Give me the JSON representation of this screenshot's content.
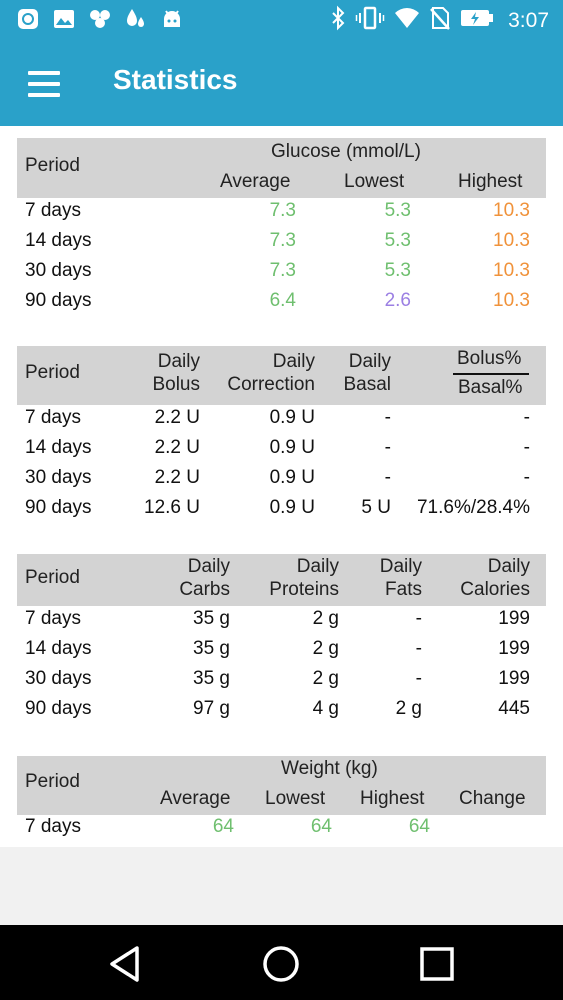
{
  "status_bar": {
    "time": "3:07",
    "left_icons": [
      "app-badge-icon",
      "image-icon",
      "hexagons-icon",
      "drops-icon",
      "android-icon"
    ],
    "right_icons": [
      "bluetooth-icon",
      "vibrate-icon",
      "wifi-icon",
      "no-sim-icon",
      "battery-charging-icon"
    ]
  },
  "app_bar": {
    "title": "Statistics",
    "menu_icon": "hamburger-menu-icon"
  },
  "colors": {
    "primary": "#2aa1c9",
    "green": "#6fbf6f",
    "orange": "#f0923a",
    "purple": "#9b7fe3",
    "header_bg": "#d3d3d3"
  },
  "glucose": {
    "period_label": "Period",
    "group_label": "Glucose (mmol/L)",
    "col_average": "Average",
    "col_lowest": "Lowest",
    "col_highest": "Highest",
    "rows": [
      {
        "period": "7 days",
        "average": "7.3",
        "lowest": "5.3",
        "highest": "10.3"
      },
      {
        "period": "14 days",
        "average": "7.3",
        "lowest": "5.3",
        "highest": "10.3"
      },
      {
        "period": "30 days",
        "average": "7.3",
        "lowest": "5.3",
        "highest": "10.3"
      },
      {
        "period": "90 days",
        "average": "6.4",
        "lowest": "2.6",
        "highest": "10.3"
      }
    ]
  },
  "insulin": {
    "period_label": "Period",
    "col_bolus_1": "Daily",
    "col_bolus_2": "Bolus",
    "col_correction_1": "Daily",
    "col_correction_2": "Correction",
    "col_basal_1": "Daily",
    "col_basal_2": "Basal",
    "col_ratio_top": "Bolus%",
    "col_ratio_bottom": "Basal%",
    "rows": [
      {
        "period": "7 days",
        "bolus": "2.2 U",
        "correction": "0.9 U",
        "basal": "-",
        "ratio": "-"
      },
      {
        "period": "14 days",
        "bolus": "2.2 U",
        "correction": "0.9 U",
        "basal": "-",
        "ratio": "-"
      },
      {
        "period": "30 days",
        "bolus": "2.2 U",
        "correction": "0.9 U",
        "basal": "-",
        "ratio": "-"
      },
      {
        "period": "90 days",
        "bolus": "12.6 U",
        "correction": "0.9 U",
        "basal": "5 U",
        "ratio": "71.6%/28.4%"
      }
    ]
  },
  "nutrition": {
    "period_label": "Period",
    "col_carbs_1": "Daily",
    "col_carbs_2": "Carbs",
    "col_proteins_1": "Daily",
    "col_proteins_2": "Proteins",
    "col_fats_1": "Daily",
    "col_fats_2": "Fats",
    "col_calories_1": "Daily",
    "col_calories_2": "Calories",
    "rows": [
      {
        "period": "7 days",
        "carbs": "35 g",
        "proteins": "2 g",
        "fats": "-",
        "calories": "199"
      },
      {
        "period": "14 days",
        "carbs": "35 g",
        "proteins": "2 g",
        "fats": "-",
        "calories": "199"
      },
      {
        "period": "30 days",
        "carbs": "35 g",
        "proteins": "2 g",
        "fats": "-",
        "calories": "199"
      },
      {
        "period": "90 days",
        "carbs": "97 g",
        "proteins": "4 g",
        "fats": "2 g",
        "calories": "445"
      }
    ]
  },
  "weight": {
    "period_label": "Period",
    "group_label": "Weight (kg)",
    "col_average": "Average",
    "col_lowest": "Lowest",
    "col_highest": "Highest",
    "col_change": "Change",
    "rows": [
      {
        "period": "7 days",
        "average": "64",
        "lowest": "64",
        "highest": "64",
        "change": ""
      }
    ]
  },
  "nav_bar": {
    "icons": [
      "back-icon",
      "home-icon",
      "recents-icon"
    ]
  }
}
